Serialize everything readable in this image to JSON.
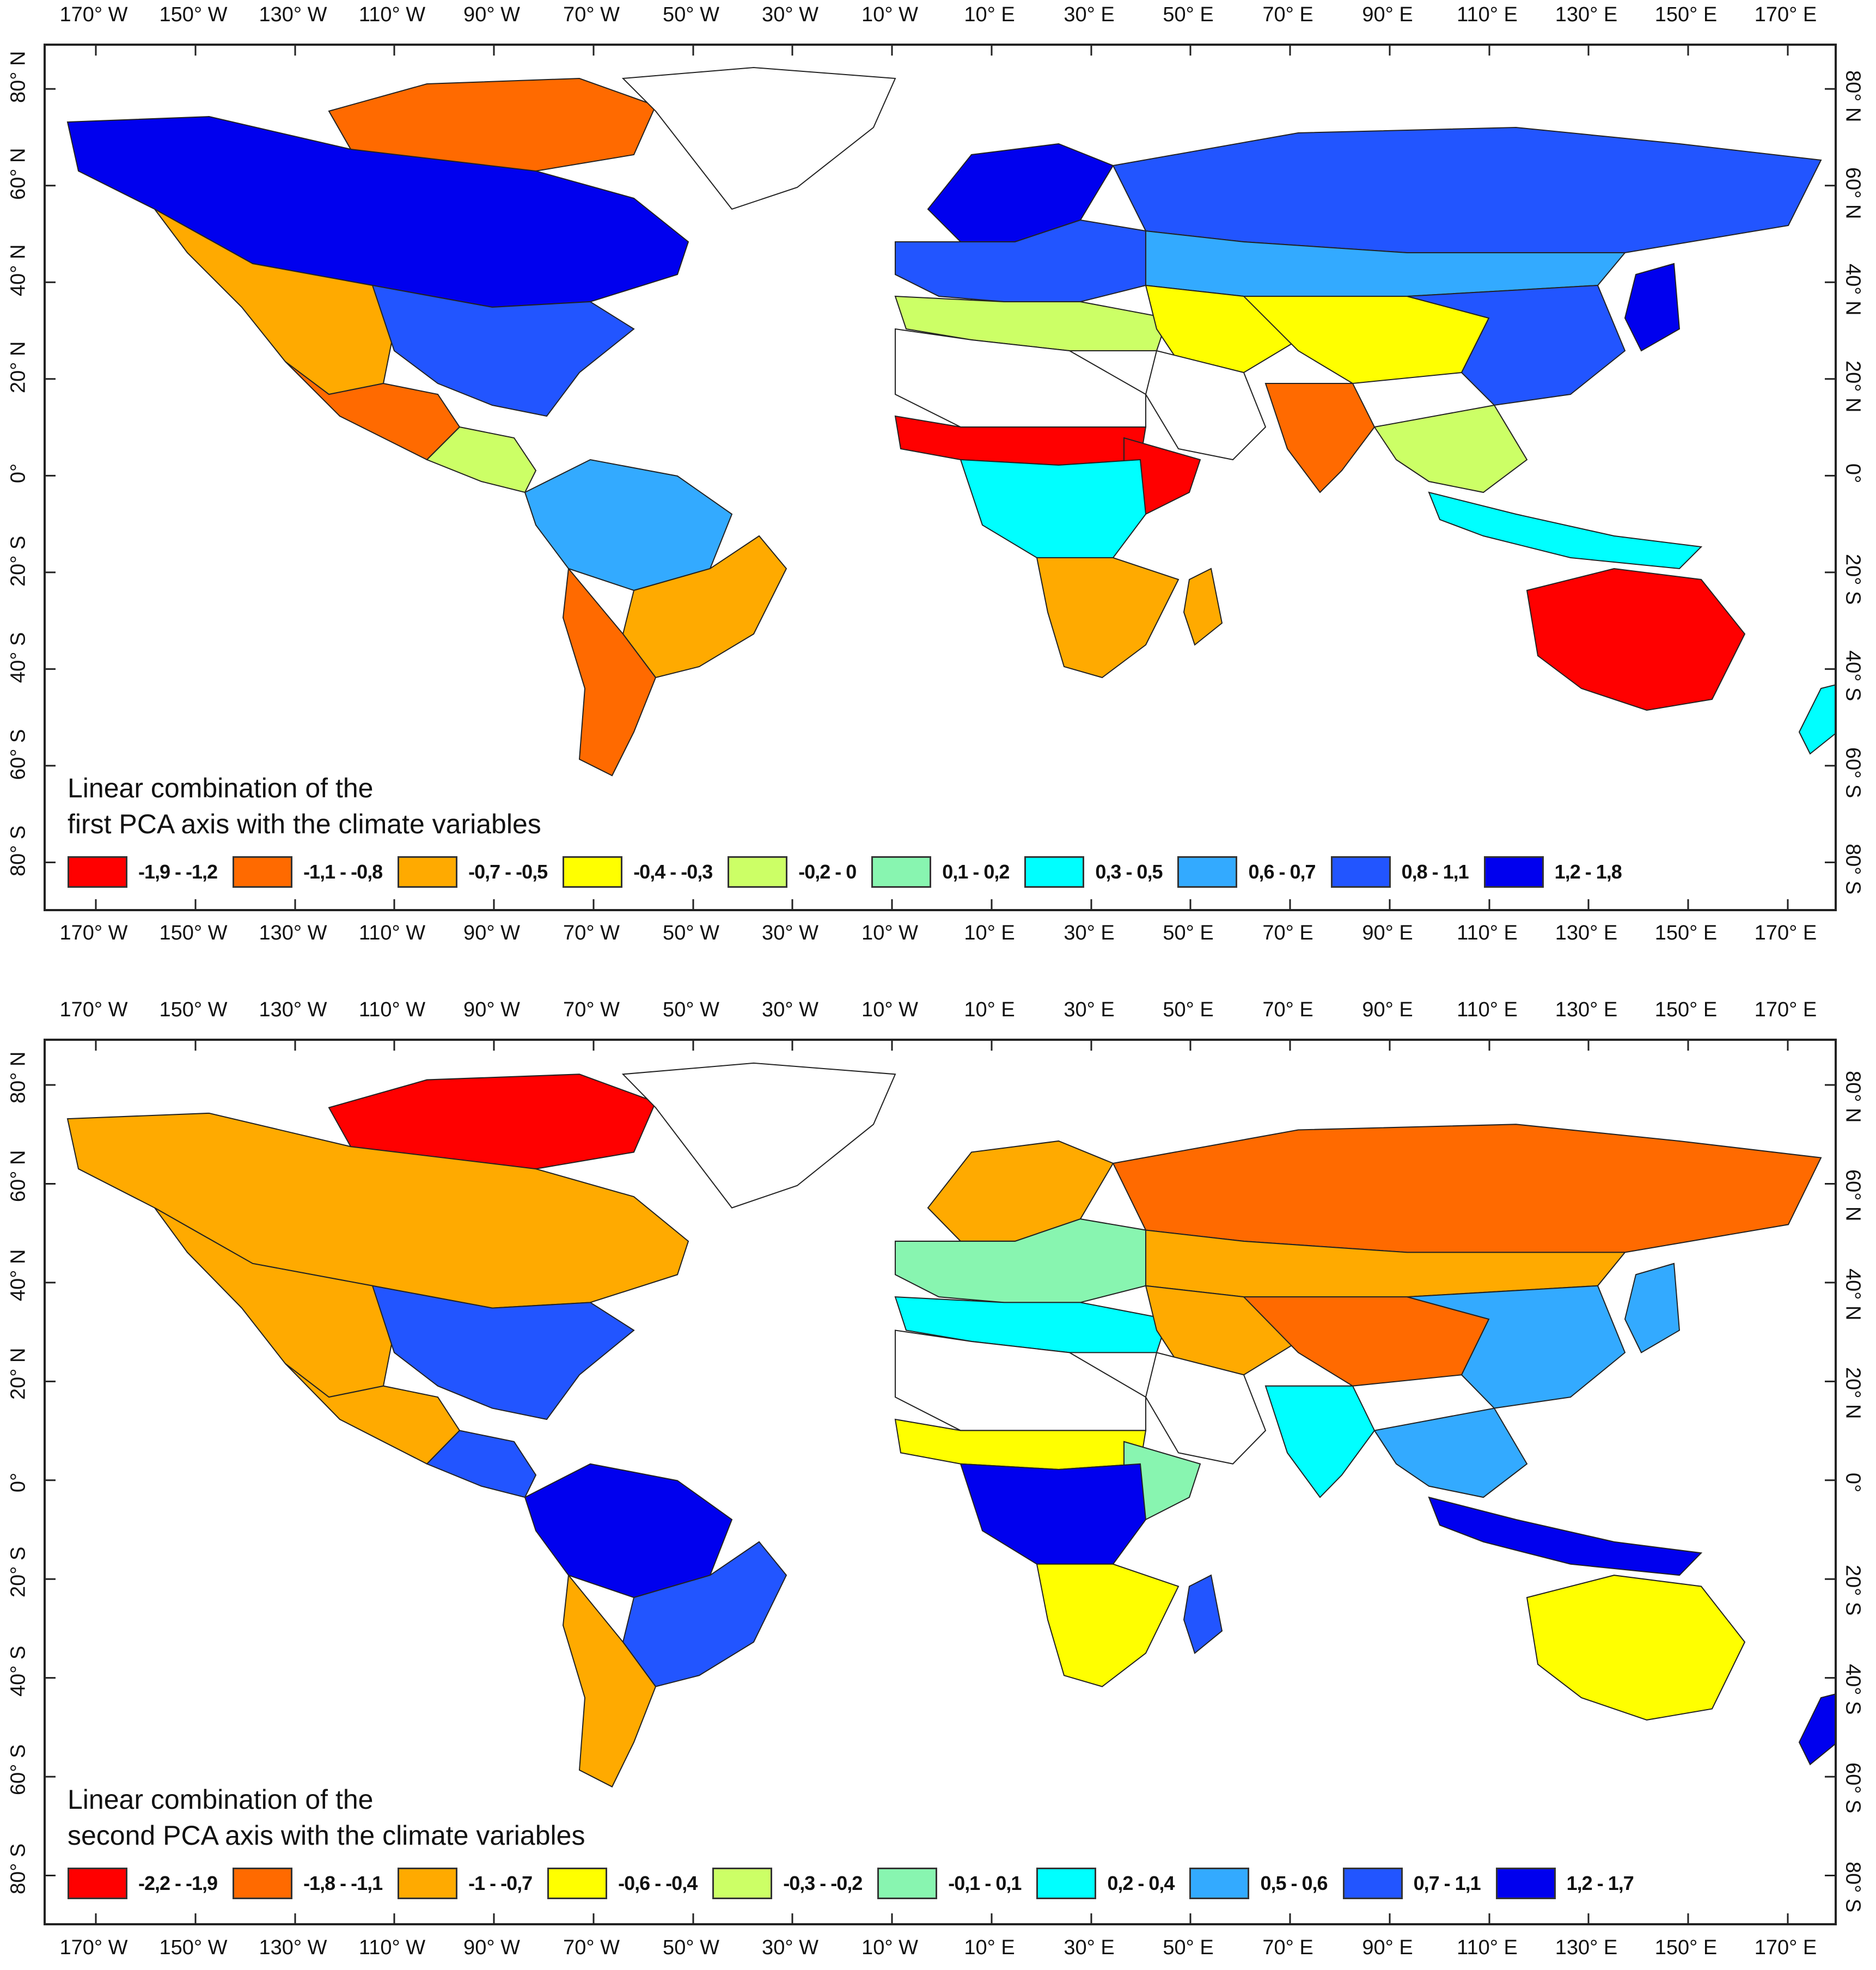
{
  "longitude_labels": [
    "170° W",
    "150° W",
    "130° W",
    "110° W",
    "90° W",
    "70° W",
    "50° W",
    "30° W",
    "10° W",
    "10° E",
    "30° E",
    "50° E",
    "70° E",
    "90° E",
    "110° E",
    "130° E",
    "150° E",
    "170° E"
  ],
  "latitude_labels": [
    "80° N",
    "60° N",
    "40° N",
    "20° N",
    "0°",
    "20° S",
    "40° S",
    "60° S",
    "80° S"
  ],
  "panels": [
    {
      "title_line1": "Linear combination of the",
      "title_line2": "first PCA axis with the climate variables",
      "legend": [
        {
          "label": "-1,9 - -1,2",
          "color": "#ff0000"
        },
        {
          "label": "-1,1 - -0,8",
          "color": "#ff6a00"
        },
        {
          "label": "-0,7 - -0,5",
          "color": "#ffaa00"
        },
        {
          "label": "-0,4 - -0,3",
          "color": "#ffff00"
        },
        {
          "label": "-0,2 - 0",
          "color": "#ccff66"
        },
        {
          "label": "0,1 - 0,2",
          "color": "#88f5b0"
        },
        {
          "label": "0,3 - 0,5",
          "color": "#00ffff"
        },
        {
          "label": "0,6 - 0,7",
          "color": "#33aaff"
        },
        {
          "label": "0,8 - 1,1",
          "color": "#2255ff"
        },
        {
          "label": "1,2 - 1,8",
          "color": "#0000ee"
        }
      ]
    },
    {
      "title_line1": "Linear combination of the",
      "title_line2": "second PCA axis with the climate variables",
      "legend": [
        {
          "label": "-2,2 - -1,9",
          "color": "#ff0000"
        },
        {
          "label": "-1,8 - -1,1",
          "color": "#ff6a00"
        },
        {
          "label": "-1 - -0,7",
          "color": "#ffaa00"
        },
        {
          "label": "-0,6 - -0,4",
          "color": "#ffff00"
        },
        {
          "label": "-0,3 - -0,2",
          "color": "#ccff66"
        },
        {
          "label": "-0,1 - 0,1",
          "color": "#88f5b0"
        },
        {
          "label": "0,2 - 0,4",
          "color": "#00ffff"
        },
        {
          "label": "0,5 - 0,6",
          "color": "#33aaff"
        },
        {
          "label": "0,7 - 1,1",
          "color": "#2255ff"
        },
        {
          "label": "1,2 - 1,7",
          "color": "#0000ee"
        }
      ]
    }
  ],
  "region_colors": {
    "pca1": {
      "north_america_north": "#0000ee",
      "north_america_east": "#2255ff",
      "north_america_west": "#ffaa00",
      "mexico": "#ff6a00",
      "central_america": "#ccff66",
      "arctic_islands": "#ff6a00",
      "greenland": "#ffffff",
      "amazon": "#33aaff",
      "brazil_east": "#ffaa00",
      "patagonia": "#ff6a00",
      "europe": "#2255ff",
      "scandinavia": "#0000ee",
      "mediterranean": "#ccff66",
      "sahara": "#ffffff",
      "sahel": "#ff0000",
      "central_africa": "#00ffff",
      "southern_africa": "#ffaa00",
      "horn_africa": "#ff0000",
      "madagascar": "#ffaa00",
      "arabia": "#ffffff",
      "siberia": "#2255ff",
      "russia_south": "#33aaff",
      "central_asia": "#ffff00",
      "tibet": "#ffff00",
      "india": "#ff6a00",
      "china_east": "#2255ff",
      "southeast_asia": "#ccff66",
      "indonesia": "#00ffff",
      "japan": "#0000ee",
      "australia": "#ff0000",
      "new_zealand": "#00ffff"
    },
    "pca2": {
      "north_america_north": "#ffaa00",
      "north_america_east": "#2255ff",
      "north_america_west": "#ffaa00",
      "mexico": "#ffaa00",
      "central_america": "#2255ff",
      "arctic_islands": "#ff0000",
      "greenland": "#ffffff",
      "amazon": "#0000ee",
      "brazil_east": "#2255ff",
      "patagonia": "#ffaa00",
      "europe": "#88f5b0",
      "scandinavia": "#ffaa00",
      "mediterranean": "#00ffff",
      "sahara": "#ffffff",
      "sahel": "#ffff00",
      "central_africa": "#0000ee",
      "southern_africa": "#ffff00",
      "horn_africa": "#88f5b0",
      "madagascar": "#2255ff",
      "arabia": "#ffffff",
      "siberia": "#ff6a00",
      "russia_south": "#ffaa00",
      "central_asia": "#ffaa00",
      "tibet": "#ff6a00",
      "india": "#00ffff",
      "china_east": "#33aaff",
      "southeast_asia": "#33aaff",
      "indonesia": "#0000ee",
      "japan": "#33aaff",
      "australia": "#ffff00",
      "new_zealand": "#0000ee"
    }
  }
}
